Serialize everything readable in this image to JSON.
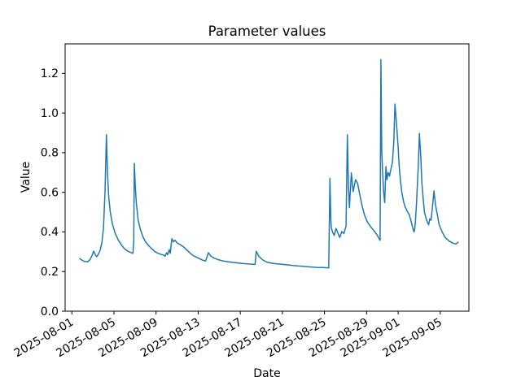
{
  "chart_data": {
    "type": "line",
    "title": "Parameter values",
    "xlabel": "Date",
    "ylabel": "Value",
    "x_unit": "days since 2025-08-01",
    "xlim": [
      -0.64,
      37.72
    ],
    "ylim": [
      0.0,
      1.349
    ],
    "grid": false,
    "line_color": "#1f77b4",
    "axis_color": "#000000",
    "background_color": "#ffffff",
    "x_ticks": [
      {
        "day": 0,
        "label": "2025-08-01"
      },
      {
        "day": 4,
        "label": "2025-08-05"
      },
      {
        "day": 8,
        "label": "2025-08-09"
      },
      {
        "day": 12,
        "label": "2025-08-13"
      },
      {
        "day": 16,
        "label": "2025-08-17"
      },
      {
        "day": 20,
        "label": "2025-08-21"
      },
      {
        "day": 24,
        "label": "2025-08-25"
      },
      {
        "day": 28,
        "label": "2025-08-29"
      },
      {
        "day": 31,
        "label": "2025-09-01"
      },
      {
        "day": 35,
        "label": "2025-09-05"
      }
    ],
    "y_ticks": [
      {
        "value": 0.0,
        "label": "0.0"
      },
      {
        "value": 0.2,
        "label": "0.2"
      },
      {
        "value": 0.4,
        "label": "0.4"
      },
      {
        "value": 0.6,
        "label": "0.6"
      },
      {
        "value": 0.8,
        "label": "0.8"
      },
      {
        "value": 1.0,
        "label": "1.0"
      },
      {
        "value": 1.2,
        "label": "1.2"
      }
    ],
    "series": [
      {
        "name": "Value",
        "points": [
          [
            0.75,
            0.265
          ],
          [
            0.95,
            0.258
          ],
          [
            1.2,
            0.251
          ],
          [
            1.5,
            0.249
          ],
          [
            1.75,
            0.262
          ],
          [
            1.95,
            0.285
          ],
          [
            2.07,
            0.303
          ],
          [
            2.2,
            0.287
          ],
          [
            2.35,
            0.275
          ],
          [
            2.55,
            0.29
          ],
          [
            2.7,
            0.31
          ],
          [
            2.85,
            0.345
          ],
          [
            3.0,
            0.42
          ],
          [
            3.15,
            0.6
          ],
          [
            3.28,
            0.89
          ],
          [
            3.38,
            0.7
          ],
          [
            3.5,
            0.58
          ],
          [
            3.65,
            0.5
          ],
          [
            3.85,
            0.44
          ],
          [
            4.1,
            0.395
          ],
          [
            4.4,
            0.36
          ],
          [
            4.7,
            0.335
          ],
          [
            5.0,
            0.315
          ],
          [
            5.3,
            0.303
          ],
          [
            5.6,
            0.296
          ],
          [
            5.8,
            0.292
          ],
          [
            5.88,
            0.35
          ],
          [
            5.93,
            0.746
          ],
          [
            6.02,
            0.64
          ],
          [
            6.12,
            0.55
          ],
          [
            6.3,
            0.46
          ],
          [
            6.5,
            0.415
          ],
          [
            6.75,
            0.375
          ],
          [
            7.0,
            0.35
          ],
          [
            7.3,
            0.33
          ],
          [
            7.6,
            0.315
          ],
          [
            7.9,
            0.3
          ],
          [
            8.2,
            0.292
          ],
          [
            8.5,
            0.286
          ],
          [
            8.75,
            0.282
          ],
          [
            8.85,
            0.277
          ],
          [
            9.0,
            0.295
          ],
          [
            9.1,
            0.285
          ],
          [
            9.25,
            0.31
          ],
          [
            9.35,
            0.292
          ],
          [
            9.5,
            0.366
          ],
          [
            9.65,
            0.35
          ],
          [
            9.8,
            0.358
          ],
          [
            10.0,
            0.345
          ],
          [
            10.3,
            0.336
          ],
          [
            10.6,
            0.325
          ],
          [
            10.95,
            0.307
          ],
          [
            11.3,
            0.29
          ],
          [
            11.6,
            0.278
          ],
          [
            12.0,
            0.268
          ],
          [
            12.4,
            0.258
          ],
          [
            12.7,
            0.253
          ],
          [
            12.97,
            0.295
          ],
          [
            13.2,
            0.278
          ],
          [
            13.5,
            0.268
          ],
          [
            13.9,
            0.26
          ],
          [
            14.4,
            0.253
          ],
          [
            14.9,
            0.249
          ],
          [
            15.5,
            0.245
          ],
          [
            16.2,
            0.241
          ],
          [
            16.9,
            0.238
          ],
          [
            17.4,
            0.236
          ],
          [
            17.52,
            0.302
          ],
          [
            17.75,
            0.278
          ],
          [
            18.1,
            0.26
          ],
          [
            18.5,
            0.248
          ],
          [
            19.0,
            0.242
          ],
          [
            19.7,
            0.238
          ],
          [
            20.4,
            0.234
          ],
          [
            21.1,
            0.23
          ],
          [
            21.8,
            0.227
          ],
          [
            22.5,
            0.224
          ],
          [
            23.2,
            0.221
          ],
          [
            23.9,
            0.22
          ],
          [
            24.4,
            0.218
          ],
          [
            24.52,
            0.67
          ],
          [
            24.6,
            0.46
          ],
          [
            24.65,
            0.42
          ],
          [
            24.78,
            0.398
          ],
          [
            24.92,
            0.382
          ],
          [
            25.1,
            0.418
          ],
          [
            25.28,
            0.394
          ],
          [
            25.45,
            0.372
          ],
          [
            25.65,
            0.402
          ],
          [
            25.85,
            0.392
          ],
          [
            26.05,
            0.43
          ],
          [
            26.17,
            0.89
          ],
          [
            26.27,
            0.65
          ],
          [
            26.37,
            0.522
          ],
          [
            26.55,
            0.698
          ],
          [
            26.72,
            0.603
          ],
          [
            26.95,
            0.664
          ],
          [
            27.15,
            0.645
          ],
          [
            27.35,
            0.59
          ],
          [
            27.6,
            0.525
          ],
          [
            27.85,
            0.478
          ],
          [
            28.1,
            0.448
          ],
          [
            28.4,
            0.425
          ],
          [
            28.7,
            0.406
          ],
          [
            29.0,
            0.385
          ],
          [
            29.15,
            0.37
          ],
          [
            29.28,
            0.357
          ],
          [
            29.36,
            1.27
          ],
          [
            29.44,
            0.82
          ],
          [
            29.52,
            0.7
          ],
          [
            29.62,
            0.6
          ],
          [
            29.72,
            0.548
          ],
          [
            29.84,
            0.73
          ],
          [
            29.93,
            0.664
          ],
          [
            30.05,
            0.7
          ],
          [
            30.18,
            0.682
          ],
          [
            30.3,
            0.715
          ],
          [
            30.45,
            0.75
          ],
          [
            30.58,
            0.85
          ],
          [
            30.7,
            1.045
          ],
          [
            30.85,
            0.937
          ],
          [
            30.98,
            0.84
          ],
          [
            31.1,
            0.73
          ],
          [
            31.22,
            0.655
          ],
          [
            31.35,
            0.6
          ],
          [
            31.5,
            0.556
          ],
          [
            31.65,
            0.528
          ],
          [
            31.85,
            0.505
          ],
          [
            32.05,
            0.487
          ],
          [
            32.2,
            0.46
          ],
          [
            32.35,
            0.428
          ],
          [
            32.45,
            0.406
          ],
          [
            32.52,
            0.4
          ],
          [
            32.62,
            0.44
          ],
          [
            32.75,
            0.55
          ],
          [
            32.9,
            0.72
          ],
          [
            33.02,
            0.897
          ],
          [
            33.15,
            0.78
          ],
          [
            33.25,
            0.65
          ],
          [
            33.38,
            0.565
          ],
          [
            33.5,
            0.5
          ],
          [
            33.65,
            0.468
          ],
          [
            33.8,
            0.446
          ],
          [
            33.9,
            0.436
          ],
          [
            34.0,
            0.466
          ],
          [
            34.12,
            0.459
          ],
          [
            34.25,
            0.52
          ],
          [
            34.4,
            0.607
          ],
          [
            34.55,
            0.535
          ],
          [
            34.7,
            0.493
          ],
          [
            34.9,
            0.436
          ],
          [
            35.2,
            0.398
          ],
          [
            35.45,
            0.373
          ],
          [
            35.85,
            0.354
          ],
          [
            36.2,
            0.343
          ],
          [
            36.5,
            0.339
          ],
          [
            36.7,
            0.348
          ]
        ]
      }
    ]
  }
}
